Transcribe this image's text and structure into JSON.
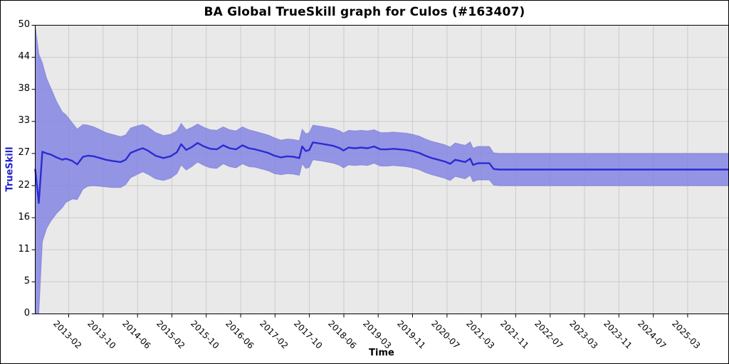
{
  "colors": {
    "band": "#8585e3",
    "band_edge": "#7474d6",
    "line": "#2b2bd4",
    "plot_bg": "#e9e9e9",
    "grid": "#cbcbcb",
    "axis_label": "#2222cc",
    "text": "#000000",
    "border": "#000000"
  },
  "chart_data": {
    "type": "line",
    "subtype": "line-with-confidence-band",
    "title": "BA Global TrueSkill graph for Culos (#163407)",
    "xlabel": "Time",
    "ylabel": "TrueSkill",
    "grid": true,
    "legend_position": "none",
    "x_range": [
      2012.434,
      2025.878
    ],
    "y_range": [
      0,
      50
    ],
    "x_tick_rotation": 45,
    "x_ticks": [
      {
        "t": 2013.083,
        "label": "2013-02"
      },
      {
        "t": 2013.75,
        "label": "2013-10"
      },
      {
        "t": 2014.417,
        "label": "2014-06"
      },
      {
        "t": 2015.083,
        "label": "2015-02"
      },
      {
        "t": 2015.75,
        "label": "2015-10"
      },
      {
        "t": 2016.417,
        "label": "2016-06"
      },
      {
        "t": 2017.083,
        "label": "2017-02"
      },
      {
        "t": 2017.75,
        "label": "2017-10"
      },
      {
        "t": 2018.417,
        "label": "2018-06"
      },
      {
        "t": 2019.083,
        "label": "2019-03"
      },
      {
        "t": 2019.75,
        "label": "2019-11"
      },
      {
        "t": 2020.417,
        "label": "2020-07"
      },
      {
        "t": 2021.083,
        "label": "2021-03"
      },
      {
        "t": 2021.75,
        "label": "2021-11"
      },
      {
        "t": 2022.417,
        "label": "2022-07"
      },
      {
        "t": 2023.083,
        "label": "2023-03"
      },
      {
        "t": 2023.75,
        "label": "2023-11"
      },
      {
        "t": 2024.417,
        "label": "2024-07"
      },
      {
        "t": 2025.083,
        "label": "2025-03"
      }
    ],
    "y_ticks": [
      {
        "v": 50.0,
        "label": "50"
      },
      {
        "v": 44.444,
        "label": "44"
      },
      {
        "v": 38.889,
        "label": "38"
      },
      {
        "v": 33.333,
        "label": "33"
      },
      {
        "v": 27.778,
        "label": "27"
      },
      {
        "v": 22.222,
        "label": "22"
      },
      {
        "v": 16.667,
        "label": "16"
      },
      {
        "v": 11.111,
        "label": "11"
      },
      {
        "v": 5.556,
        "label": "5"
      },
      {
        "v": 0.0,
        "label": "0"
      }
    ],
    "series": [
      {
        "name": "TrueSkill rating (mu)",
        "style": "line"
      },
      {
        "name": "uncertainty band",
        "style": "band"
      }
    ],
    "points_format": [
      "time_decimal_year",
      "band_low",
      "trueskill_mu",
      "band_high"
    ],
    "points": [
      [
        2012.434,
        0.0,
        25.0,
        50.0
      ],
      [
        2012.503,
        0.0,
        19.2,
        45.0
      ],
      [
        2012.572,
        12.5,
        28.1,
        43.5
      ],
      [
        2012.655,
        14.8,
        27.8,
        40.8
      ],
      [
        2012.738,
        16.1,
        27.6,
        39.1
      ],
      [
        2012.848,
        17.4,
        27.1,
        36.8
      ],
      [
        2012.959,
        18.4,
        26.7,
        35.0
      ],
      [
        2013.028,
        19.3,
        26.9,
        34.5
      ],
      [
        2013.152,
        19.9,
        26.5,
        33.1
      ],
      [
        2013.249,
        19.8,
        25.9,
        32.0
      ],
      [
        2013.359,
        21.6,
        27.2,
        32.8
      ],
      [
        2013.456,
        22.1,
        27.4,
        32.7
      ],
      [
        2013.566,
        22.2,
        27.3,
        32.4
      ],
      [
        2013.69,
        22.1,
        27.0,
        31.9
      ],
      [
        2013.801,
        22.0,
        26.7,
        31.4
      ],
      [
        2013.925,
        21.9,
        26.5,
        31.1
      ],
      [
        2014.091,
        21.9,
        26.3,
        30.7
      ],
      [
        2014.187,
        22.4,
        26.7,
        31.0
      ],
      [
        2014.284,
        23.6,
        27.9,
        32.2
      ],
      [
        2014.422,
        24.2,
        28.4,
        32.6
      ],
      [
        2014.518,
        24.6,
        28.7,
        32.8
      ],
      [
        2014.615,
        24.2,
        28.3,
        32.4
      ],
      [
        2014.767,
        23.4,
        27.4,
        31.4
      ],
      [
        2014.919,
        23.1,
        27.0,
        30.9
      ],
      [
        2015.057,
        23.5,
        27.3,
        31.1
      ],
      [
        2015.181,
        24.3,
        28.0,
        31.7
      ],
      [
        2015.264,
        25.8,
        29.4,
        33.0
      ],
      [
        2015.36,
        24.9,
        28.4,
        31.9
      ],
      [
        2015.471,
        25.5,
        28.9,
        32.3
      ],
      [
        2015.581,
        26.3,
        29.6,
        32.9
      ],
      [
        2015.705,
        25.7,
        29.0,
        32.3
      ],
      [
        2015.829,
        25.3,
        28.6,
        31.9
      ],
      [
        2015.954,
        25.2,
        28.5,
        31.8
      ],
      [
        2016.078,
        26.0,
        29.2,
        32.4
      ],
      [
        2016.202,
        25.5,
        28.7,
        31.9
      ],
      [
        2016.326,
        25.3,
        28.5,
        31.7
      ],
      [
        2016.45,
        26.0,
        29.2,
        32.4
      ],
      [
        2016.575,
        25.5,
        28.7,
        31.9
      ],
      [
        2016.699,
        25.4,
        28.5,
        31.6
      ],
      [
        2016.823,
        25.1,
        28.2,
        31.3
      ],
      [
        2016.947,
        24.8,
        27.9,
        31.0
      ],
      [
        2017.071,
        24.3,
        27.4,
        30.5
      ],
      [
        2017.196,
        24.1,
        27.1,
        30.1
      ],
      [
        2017.32,
        24.3,
        27.3,
        30.3
      ],
      [
        2017.444,
        24.2,
        27.2,
        30.2
      ],
      [
        2017.554,
        24.0,
        27.0,
        30.0
      ],
      [
        2017.61,
        26.0,
        29.0,
        32.0
      ],
      [
        2017.679,
        25.2,
        28.2,
        31.2
      ],
      [
        2017.748,
        25.4,
        28.4,
        31.4
      ],
      [
        2017.817,
        26.7,
        29.7,
        32.7
      ],
      [
        2017.968,
        26.5,
        29.5,
        32.5
      ],
      [
        2018.093,
        26.3,
        29.3,
        32.3
      ],
      [
        2018.217,
        26.1,
        29.1,
        32.1
      ],
      [
        2018.341,
        25.7,
        28.7,
        31.7
      ],
      [
        2018.41,
        25.3,
        28.3,
        31.3
      ],
      [
        2018.507,
        25.8,
        28.8,
        31.8
      ],
      [
        2018.631,
        25.7,
        28.7,
        31.7
      ],
      [
        2018.755,
        25.8,
        28.8,
        31.8
      ],
      [
        2018.879,
        25.7,
        28.7,
        31.7
      ],
      [
        2019.004,
        26.1,
        29.0,
        31.9
      ],
      [
        2019.128,
        25.6,
        28.5,
        31.4
      ],
      [
        2019.252,
        25.6,
        28.5,
        31.4
      ],
      [
        2019.376,
        25.7,
        28.6,
        31.5
      ],
      [
        2019.5,
        25.6,
        28.5,
        31.4
      ],
      [
        2019.625,
        25.5,
        28.4,
        31.3
      ],
      [
        2019.749,
        25.3,
        28.2,
        31.1
      ],
      [
        2019.873,
        25.0,
        27.9,
        30.8
      ],
      [
        2019.997,
        24.5,
        27.4,
        30.3
      ],
      [
        2020.121,
        24.1,
        27.0,
        29.9
      ],
      [
        2020.246,
        23.8,
        26.7,
        29.6
      ],
      [
        2020.37,
        23.5,
        26.4,
        29.3
      ],
      [
        2020.48,
        23.1,
        26.0,
        28.9
      ],
      [
        2020.577,
        23.8,
        26.7,
        29.6
      ],
      [
        2020.673,
        23.6,
        26.5,
        29.4
      ],
      [
        2020.77,
        23.4,
        26.3,
        29.2
      ],
      [
        2020.867,
        24.0,
        26.9,
        29.8
      ],
      [
        2020.922,
        22.9,
        25.8,
        28.7
      ],
      [
        2021.018,
        23.2,
        26.1,
        29.0
      ],
      [
        2021.129,
        23.2,
        26.1,
        29.0
      ],
      [
        2021.239,
        23.2,
        26.1,
        29.0
      ],
      [
        2021.322,
        22.3,
        25.1,
        27.9
      ],
      [
        2021.432,
        22.2,
        25.0,
        27.8
      ],
      [
        2025.878,
        22.2,
        25.0,
        27.8
      ]
    ]
  }
}
